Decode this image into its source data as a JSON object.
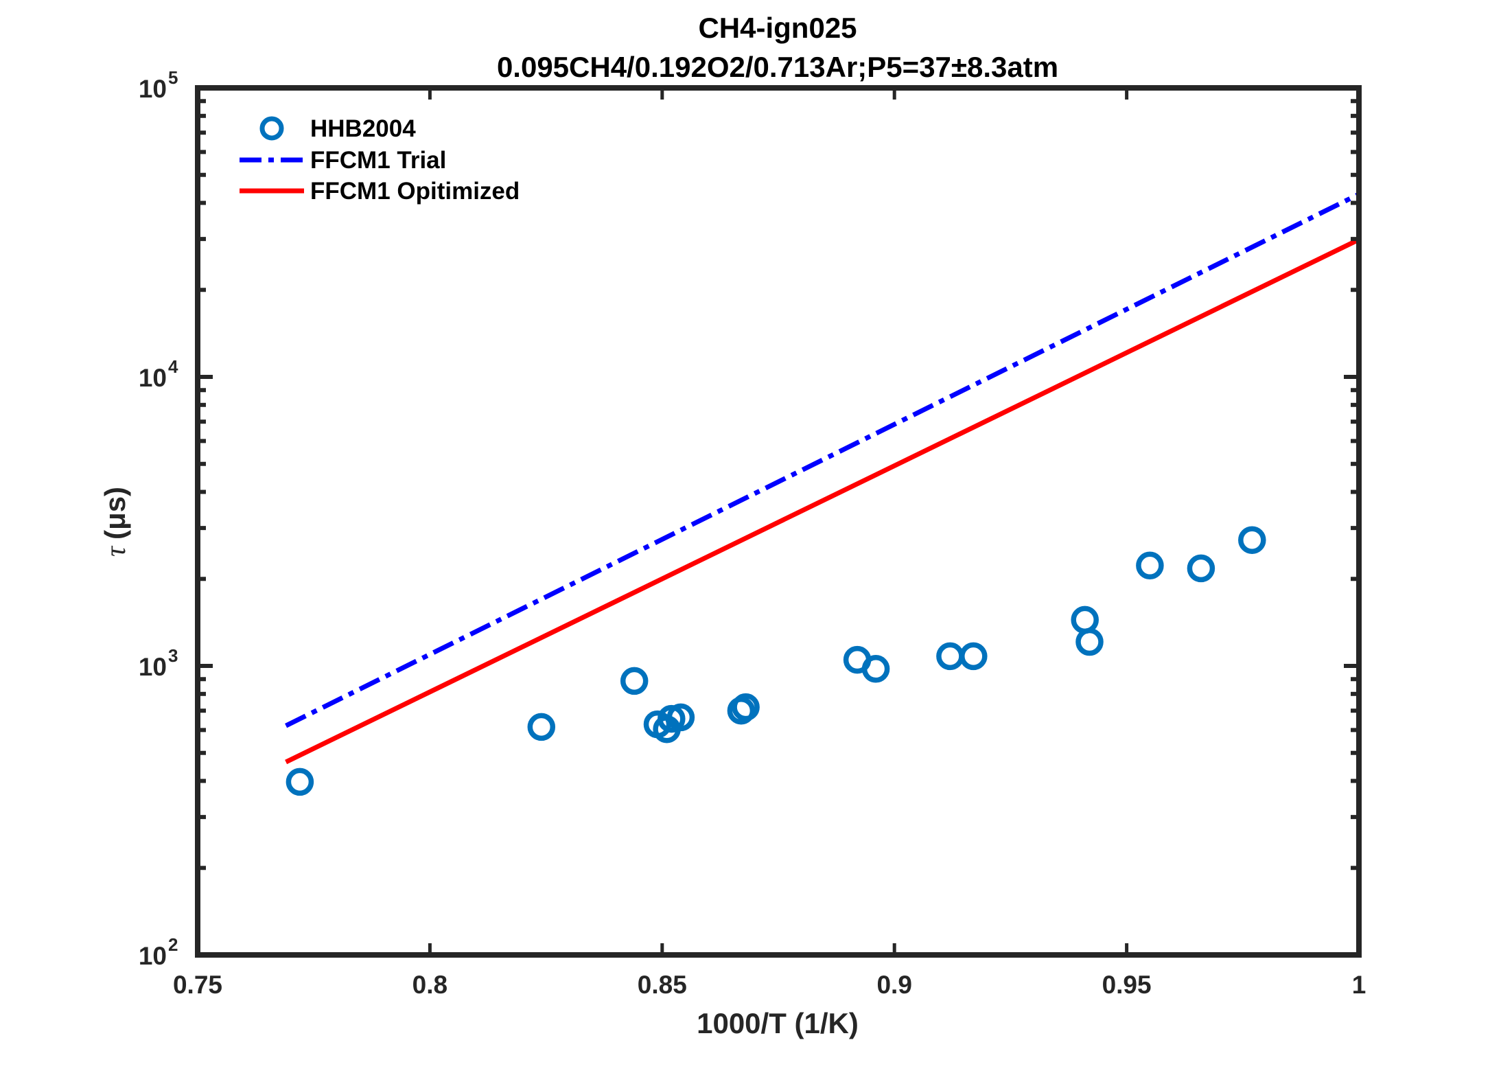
{
  "chart_data": {
    "type": "scatter",
    "title": "CH4-ign025",
    "subtitle": "0.095CH4/0.192O2/0.713Ar;P5=37±8.3atm",
    "xlabel": "1000/T (1/K)",
    "ylabel_symbol": "τ",
    "ylabel_unit": "(μs)",
    "xlim": [
      0.75,
      1
    ],
    "ylim": [
      100,
      100000
    ],
    "yscale": "log",
    "grid": false,
    "legend_position": "top-left",
    "x_ticks": [
      {
        "value": 0.75,
        "label": "0.75"
      },
      {
        "value": 0.8,
        "label": "0.8"
      },
      {
        "value": 0.85,
        "label": "0.85"
      },
      {
        "value": 0.9,
        "label": "0.9"
      },
      {
        "value": 0.95,
        "label": "0.95"
      },
      {
        "value": 1,
        "label": "1"
      }
    ],
    "y_ticks": [
      {
        "value": 100,
        "base": "10",
        "exp": "2"
      },
      {
        "value": 1000,
        "base": "10",
        "exp": "3"
      },
      {
        "value": 10000,
        "base": "10",
        "exp": "4"
      },
      {
        "value": 100000,
        "base": "10",
        "exp": "5"
      }
    ],
    "series": [
      {
        "name": "HHB2004",
        "kind": "markers",
        "color": "#0072BD",
        "x": [
          0.772,
          0.824,
          0.844,
          0.849,
          0.851,
          0.852,
          0.854,
          0.867,
          0.868,
          0.892,
          0.896,
          0.912,
          0.917,
          0.941,
          0.942,
          0.955,
          0.966,
          0.977
        ],
        "y": [
          397,
          615,
          887,
          628,
          604,
          656,
          664,
          700,
          720,
          1050,
          977,
          1080,
          1080,
          1443,
          1211,
          2225,
          2175,
          2725
        ]
      },
      {
        "name": "FFCM1 Trial",
        "kind": "dashdot-line",
        "color": "#0000FF",
        "x": [
          0.769,
          1.0
        ],
        "y": [
          621,
          42850
        ]
      },
      {
        "name": "FFCM1 Opitimized",
        "kind": "solid-line",
        "color": "#FF0000",
        "x": [
          0.769,
          1.0
        ],
        "y": [
          465,
          29850
        ]
      }
    ]
  }
}
